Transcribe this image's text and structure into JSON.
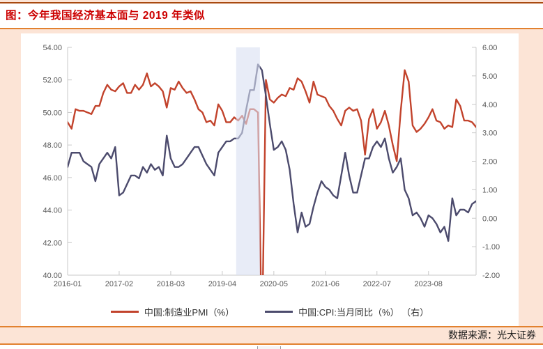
{
  "page": {
    "title": "图：今年我国经济基本面与 2019 年类似",
    "source_note": "数据来源：光大证券",
    "colors": {
      "page_bg": "#fce4d6",
      "title_text": "#cc0000",
      "top_rule": "#a8490f",
      "accent_rule": "#e2812f",
      "panel_bg": "#ffffff",
      "axis_line": "#c9c9c9",
      "tick_label": "#595959",
      "legend_text": "#333333",
      "source_text": "#1a1a1a"
    }
  },
  "chart_data": {
    "type": "line",
    "title": "今年我国经济基本面与 2019 年类似",
    "x_unit": "month",
    "x_start": "2016-01",
    "x_end": "2024-08",
    "x_tick_labels": [
      "2016-01",
      "2017-02",
      "2018-03",
      "2019-04",
      "2020-05",
      "2021-06",
      "2022-07",
      "2023-08"
    ],
    "x_tick_indices": [
      0,
      13,
      26,
      39,
      52,
      65,
      78,
      91
    ],
    "left_axis": {
      "min": 40,
      "max": 54,
      "tick_labels": [
        "54.00",
        "52.00",
        "50.00",
        "48.00",
        "46.00",
        "44.00",
        "42.00",
        "40.00"
      ]
    },
    "right_axis": {
      "min": -2,
      "max": 6,
      "tick_labels": [
        "6.00",
        "5.00",
        "4.00",
        "3.00",
        "2.00",
        "1.00",
        "0.00",
        "-1.00",
        "-2.00"
      ]
    },
    "highlight_band": {
      "start_month": "2019-08",
      "end_month": "2020-01",
      "start_index": 43,
      "end_index": 48,
      "color": "#d8dff2",
      "opacity": 0.6
    },
    "legend_position": "bottom",
    "series": [
      {
        "id": "pmi",
        "name": "中国:制造业PMI（%）",
        "axis": "left",
        "color": "#c2432c",
        "values": [
          49.4,
          49.0,
          50.2,
          50.1,
          50.1,
          50.0,
          49.9,
          50.4,
          50.4,
          51.2,
          51.7,
          51.4,
          51.3,
          51.6,
          51.8,
          51.2,
          51.2,
          51.7,
          51.4,
          51.7,
          52.4,
          51.6,
          51.8,
          51.6,
          51.3,
          50.3,
          51.5,
          51.4,
          51.9,
          51.5,
          51.2,
          51.3,
          50.8,
          50.2,
          50.0,
          49.4,
          49.5,
          49.2,
          50.5,
          50.1,
          49.4,
          49.4,
          49.7,
          49.5,
          49.8,
          49.3,
          50.2,
          50.2,
          50.0,
          35.7,
          52.0,
          50.8,
          50.6,
          50.9,
          51.1,
          51.0,
          51.5,
          51.4,
          52.1,
          51.9,
          51.3,
          50.6,
          51.9,
          51.1,
          51.0,
          50.9,
          50.4,
          50.1,
          49.6,
          49.2,
          50.1,
          50.3,
          50.1,
          50.2,
          49.5,
          47.4,
          49.6,
          50.2,
          49.0,
          49.4,
          50.1,
          49.2,
          48.0,
          47.0,
          50.1,
          52.6,
          51.9,
          49.2,
          48.8,
          49.0,
          49.3,
          49.7,
          50.2,
          49.5,
          49.4,
          49.0,
          49.2,
          49.1,
          50.8,
          50.4,
          49.5,
          49.5,
          49.4,
          49.1
        ]
      },
      {
        "id": "cpi",
        "name": "中国:CPI:当月同比（%） （右）",
        "axis": "right",
        "color": "#4c4b6d",
        "values": [
          1.8,
          2.3,
          2.3,
          2.3,
          2.0,
          1.9,
          1.8,
          1.3,
          1.9,
          2.1,
          2.3,
          2.1,
          2.5,
          0.8,
          0.9,
          1.2,
          1.5,
          1.5,
          1.4,
          1.8,
          1.6,
          1.9,
          1.7,
          1.8,
          1.5,
          2.9,
          2.1,
          1.8,
          1.8,
          1.9,
          2.1,
          2.3,
          2.5,
          2.5,
          2.2,
          1.9,
          1.7,
          1.5,
          2.3,
          2.5,
          2.7,
          2.7,
          2.8,
          2.8,
          3.0,
          3.8,
          4.5,
          4.5,
          5.4,
          5.2,
          4.3,
          3.3,
          2.4,
          2.5,
          2.7,
          2.4,
          1.7,
          0.5,
          -0.5,
          0.2,
          -0.3,
          -0.2,
          0.4,
          0.9,
          1.3,
          1.1,
          1.0,
          0.8,
          0.7,
          1.5,
          2.3,
          1.5,
          0.9,
          0.9,
          1.5,
          2.1,
          2.1,
          2.5,
          2.7,
          2.5,
          2.8,
          2.1,
          1.6,
          1.8,
          2.1,
          1.0,
          0.7,
          0.1,
          0.2,
          0.0,
          -0.3,
          0.1,
          0.0,
          -0.2,
          -0.5,
          -0.3,
          -0.8,
          0.7,
          0.1,
          0.3,
          0.3,
          0.2,
          0.5,
          0.6
        ]
      }
    ]
  }
}
